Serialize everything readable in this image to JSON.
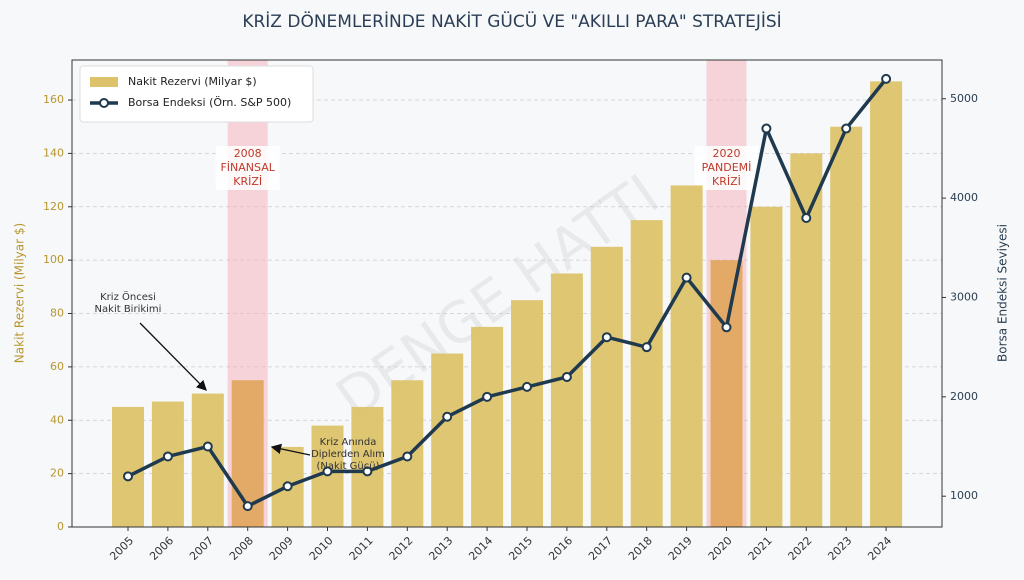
{
  "chart_data": {
    "type": "bar-line",
    "title": "KRİZ DÖNEMLERİNDE NAKİT GÜCÜ VE \"AKILLI PARA\" STRATEJİSİ",
    "y_label": "Nakit Rezervi (Milyar $)",
    "y2_label": "Borsa Endeksi Seviyesi",
    "categories": [
      "2005",
      "2006",
      "2007",
      "2008",
      "2009",
      "2010",
      "2011",
      "2012",
      "2013",
      "2014",
      "2015",
      "2016",
      "2017",
      "2018",
      "2019",
      "2020",
      "2021",
      "2022",
      "2023",
      "2024"
    ],
    "series": [
      {
        "name": "Nakit Rezervi (Milyar $)",
        "type": "bar",
        "color": "#dcc36b",
        "values": [
          45,
          47,
          50,
          55,
          30,
          38,
          45,
          55,
          65,
          75,
          85,
          95,
          105,
          115,
          128,
          100,
          120,
          140,
          150,
          167
        ]
      },
      {
        "name": "Borsa Endeksi (Örn. S&P 500)",
        "type": "line",
        "axis": "y2",
        "color": "#1f3a4f",
        "values": [
          1200,
          1400,
          1500,
          900,
          1100,
          1250,
          1250,
          1400,
          1800,
          2000,
          2100,
          2200,
          2600,
          2500,
          3200,
          2700,
          4700,
          3800,
          4700,
          5200
        ]
      }
    ],
    "ylim": [
      0,
      175
    ],
    "yticks": [
      0,
      20,
      40,
      60,
      80,
      100,
      120,
      140,
      160
    ],
    "y2lim": [
      690,
      5390
    ],
    "y2ticks": [
      1000,
      2000,
      3000,
      4000,
      5000
    ],
    "grid": true,
    "legend": "upper left",
    "highlight_color": "#e0a860",
    "crisis_periods": [
      {
        "label": [
          "2008",
          "FİNANSAL",
          "KRİZİ"
        ]
      },
      {
        "label": [
          "2020",
          "PANDEMİ",
          "KRİZİ"
        ]
      }
    ],
    "annotations": [
      {
        "text": [
          "Kriz Öncesi",
          "Nakit Birikimi"
        ]
      },
      {
        "text": [
          "Kriz Anında",
          "Diplerden Alım",
          "(Nakit Gücü)"
        ]
      }
    ],
    "watermark": "DENGE HATTI"
  }
}
